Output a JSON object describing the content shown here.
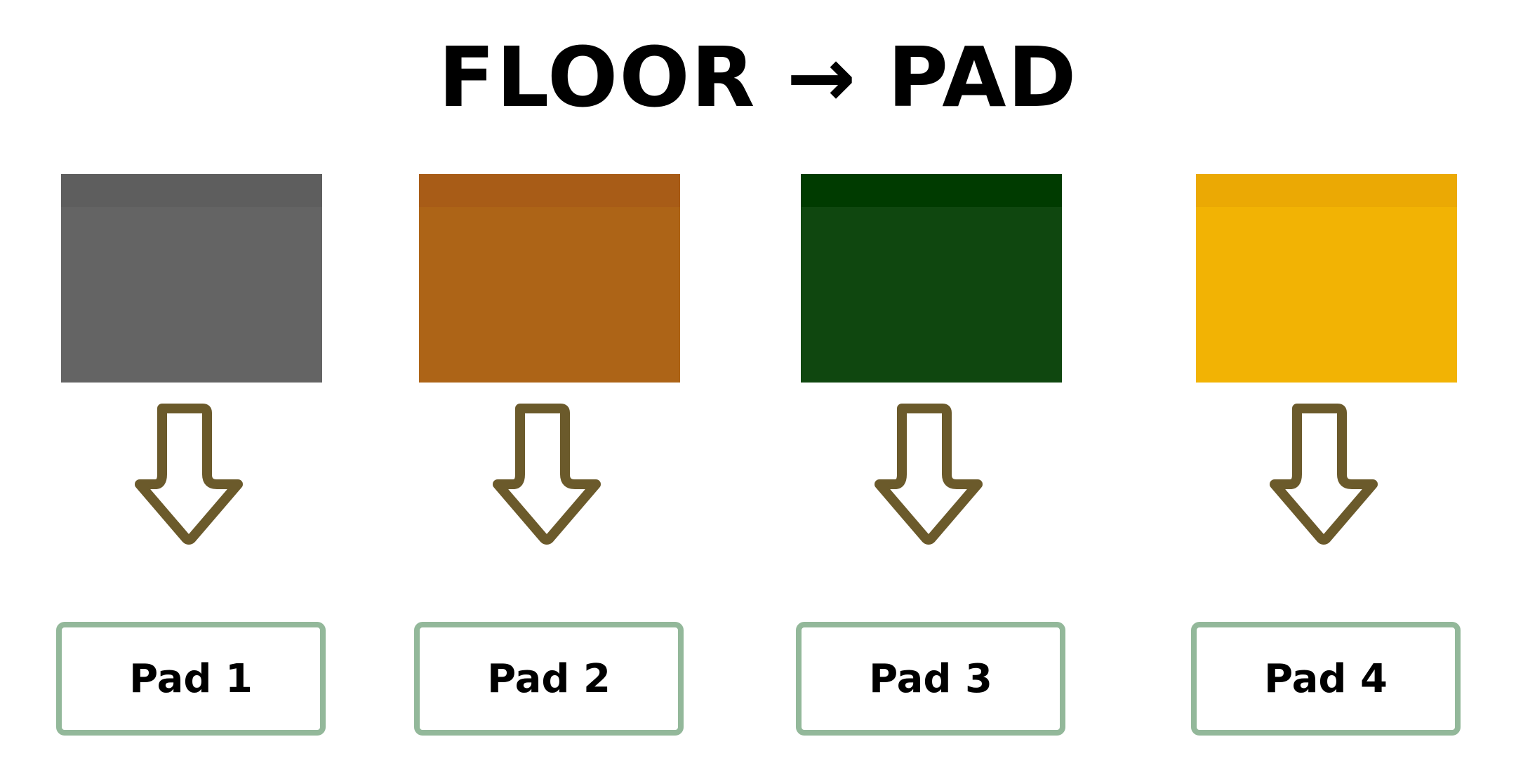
{
  "title": "FLOOR → PAD",
  "colors": {
    "arrow_stroke": "#6b5a2b",
    "pad_border": "#93b89a"
  },
  "columns": [
    {
      "pad_label": "Pad 1",
      "swatch_color": "#646464",
      "swatch_band_color": "#5e5e5e"
    },
    {
      "pad_label": "Pad 2",
      "swatch_color": "#ad6417",
      "swatch_band_color": "#a85c17"
    },
    {
      "pad_label": "Pad 3",
      "swatch_color": "#0f470f",
      "swatch_band_color": "#003b00"
    },
    {
      "pad_label": "Pad 4",
      "swatch_color": "#f2b304",
      "swatch_band_color": "#eba904"
    }
  ]
}
